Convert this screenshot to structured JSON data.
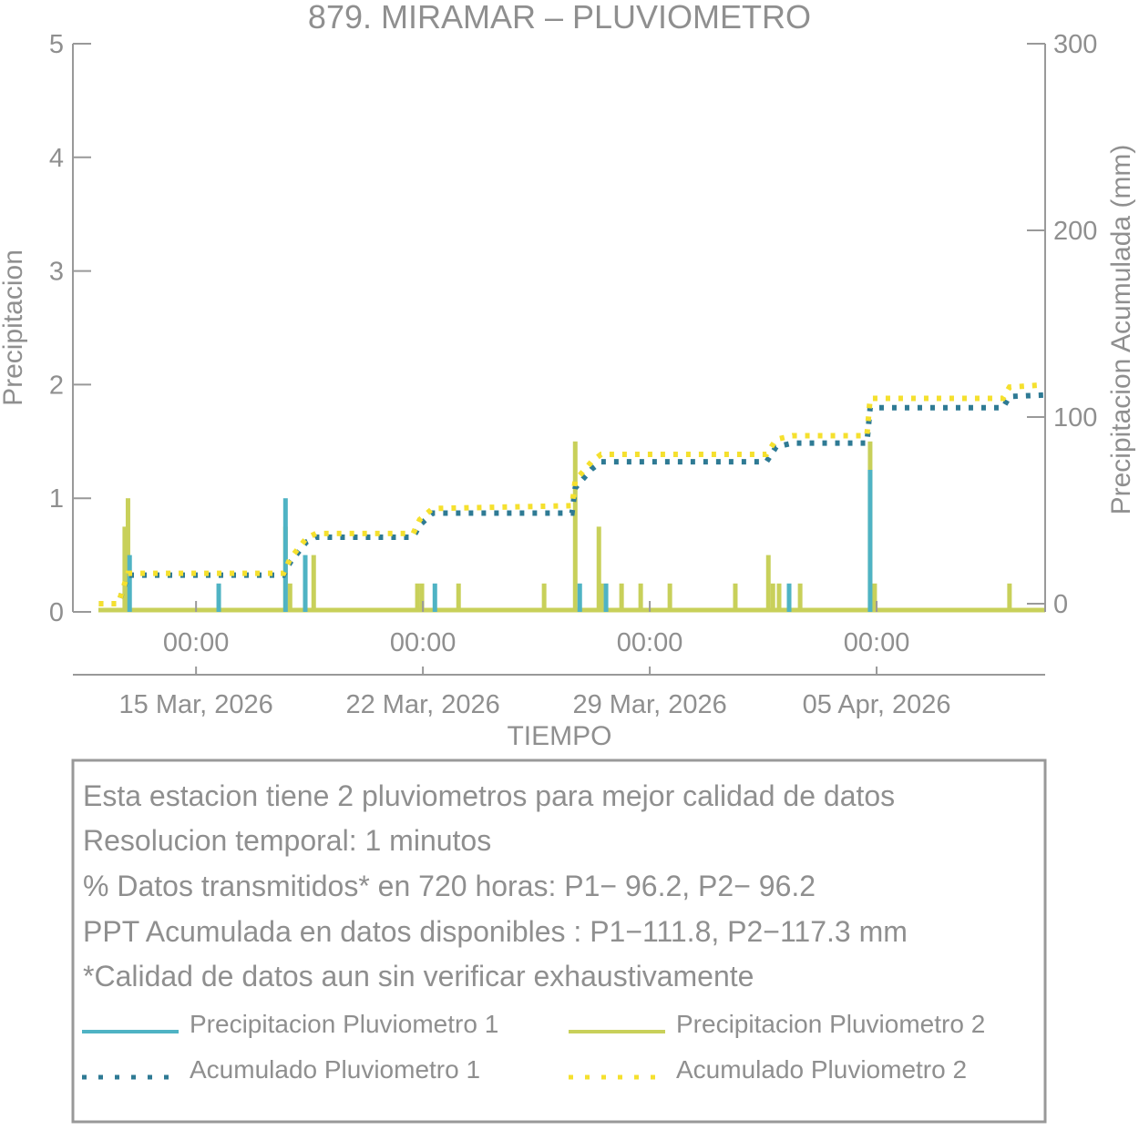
{
  "chart_data": {
    "type": "bar",
    "title": "879. MIRAMAR – PLUVIOMETRO",
    "xlabel": "TIEMPO",
    "ylabel": "Precipitacion",
    "y2label": "Precipitacion Acumulada (mm)",
    "x_units": "days relative to 15 Mar 2026 00:00",
    "xlim": [
      -3.8,
      26.2
    ],
    "ylim": [
      0,
      5
    ],
    "y2lim": [
      -4.4,
      300
    ],
    "yticks": [
      "0",
      "1",
      "2",
      "3",
      "4",
      "5"
    ],
    "y2ticks": [
      "0",
      "100",
      "200",
      "300"
    ],
    "xticks": [
      {
        "day": 0,
        "time": "00:00",
        "date": "15 Mar, 2026"
      },
      {
        "day": 7,
        "time": "00:00",
        "date": "22 Mar, 2026"
      },
      {
        "day": 14,
        "time": "00:00",
        "date": "29 Mar, 2026"
      },
      {
        "day": 21,
        "time": "00:00",
        "date": "05 Apr, 2026"
      }
    ],
    "series": [
      {
        "name": "Precipitacion Pluviometro 1",
        "kind": "bar",
        "axis": "left",
        "color": "#4fb3c4",
        "points": [
          [
            -2.05,
            0.5
          ],
          [
            0.7,
            0.25
          ],
          [
            2.76,
            1.0
          ],
          [
            3.37,
            0.5
          ],
          [
            7.37,
            0.25
          ],
          [
            11.84,
            0.25
          ],
          [
            12.65,
            0.25
          ],
          [
            18.3,
            0.25
          ],
          [
            20.8,
            1.25
          ]
        ]
      },
      {
        "name": "Precipitacion Pluviometro 2",
        "kind": "bar",
        "axis": "left",
        "color": "#c8d05a",
        "points": [
          [
            -2.2,
            0.75
          ],
          [
            -2.1,
            1.0
          ],
          [
            2.76,
            0.75
          ],
          [
            2.9,
            0.25
          ],
          [
            3.37,
            0.25
          ],
          [
            3.63,
            0.5
          ],
          [
            6.83,
            0.25
          ],
          [
            6.97,
            0.25
          ],
          [
            8.1,
            0.25
          ],
          [
            10.74,
            0.25
          ],
          [
            11.7,
            1.5
          ],
          [
            12.43,
            0.75
          ],
          [
            12.51,
            0.25
          ],
          [
            13.13,
            0.25
          ],
          [
            13.72,
            0.25
          ],
          [
            14.62,
            0.25
          ],
          [
            16.64,
            0.25
          ],
          [
            17.66,
            0.5
          ],
          [
            17.8,
            0.25
          ],
          [
            17.99,
            0.25
          ],
          [
            18.64,
            0.25
          ],
          [
            20.8,
            1.5
          ],
          [
            20.94,
            0.25
          ],
          [
            25.1,
            0.25
          ]
        ]
      },
      {
        "name": "Acumulado Pluviometro 1",
        "kind": "line",
        "axis": "right",
        "color": "#2e7a94",
        "points": [
          [
            -3.0,
            0
          ],
          [
            -2.4,
            0
          ],
          [
            -2.1,
            15.3
          ],
          [
            2.7,
            15.3
          ],
          [
            2.9,
            22
          ],
          [
            3.4,
            33
          ],
          [
            3.7,
            35.6
          ],
          [
            6.7,
            35.6
          ],
          [
            6.9,
            42
          ],
          [
            7.3,
            48.5
          ],
          [
            11.6,
            48.5
          ],
          [
            11.7,
            62
          ],
          [
            12.2,
            72
          ],
          [
            12.5,
            76
          ],
          [
            17.6,
            76
          ],
          [
            17.9,
            84
          ],
          [
            18.4,
            86
          ],
          [
            20.7,
            86
          ],
          [
            20.8,
            105
          ],
          [
            24.9,
            105
          ],
          [
            25.1,
            111
          ],
          [
            26.2,
            111.8
          ]
        ]
      },
      {
        "name": "Acumulado Pluviometro 2",
        "kind": "line",
        "axis": "right",
        "color": "#f5e02e",
        "points": [
          [
            -3.0,
            0
          ],
          [
            -2.4,
            0
          ],
          [
            -2.1,
            16.3
          ],
          [
            2.7,
            16.3
          ],
          [
            2.9,
            24
          ],
          [
            3.4,
            35
          ],
          [
            3.7,
            37.6
          ],
          [
            6.7,
            37.6
          ],
          [
            6.9,
            45
          ],
          [
            7.3,
            51
          ],
          [
            11.6,
            52.5
          ],
          [
            11.7,
            66
          ],
          [
            12.2,
            76
          ],
          [
            12.5,
            80
          ],
          [
            17.6,
            80
          ],
          [
            17.9,
            88
          ],
          [
            18.4,
            90
          ],
          [
            20.7,
            90
          ],
          [
            20.8,
            110
          ],
          [
            24.9,
            110
          ],
          [
            25.1,
            116
          ],
          [
            26.2,
            117.3
          ]
        ]
      }
    ]
  },
  "info": {
    "lines": [
      "Esta estacion tiene 2 pluviometros para mejor calidad de datos",
      "Resolucion temporal: 1 minutos",
      "% Datos transmitidos* en 720 horas: P1− 96.2, P2− 96.2",
      "PPT Acumulada en datos disponibles : P1−111.8, P2−117.3 mm",
      "*Calidad de datos aun sin verificar exhaustivamente"
    ],
    "legend": [
      "Precipitacion Pluviometro 1",
      "Precipitacion Pluviometro 2",
      "Acumulado Pluviometro 1",
      "Acumulado Pluviometro 2"
    ]
  }
}
